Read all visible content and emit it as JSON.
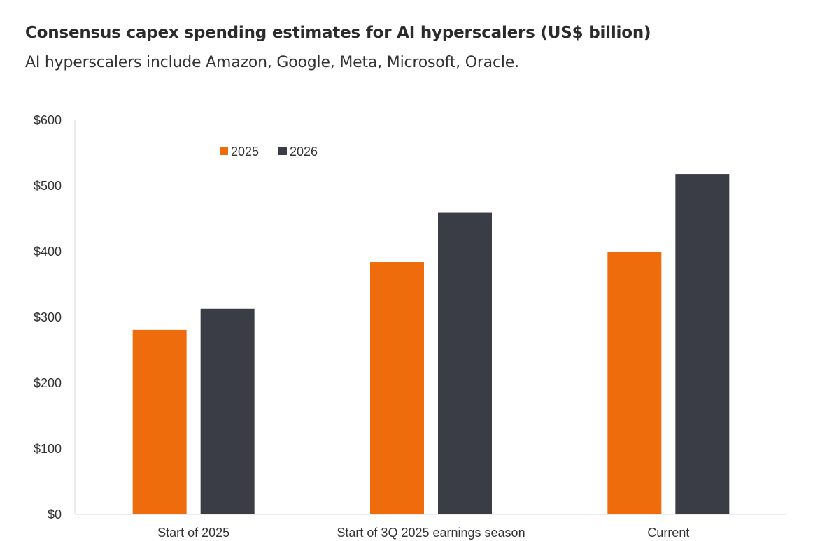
{
  "header": {
    "title": "Consensus capex spending estimates for AI hyperscalers (US$ billion)",
    "subtitle": "AI hyperscalers include Amazon, Google, Meta, Microsoft, Oracle."
  },
  "chart_data": {
    "type": "bar",
    "title": "Consensus capex spending estimates for AI hyperscalers (US$ billion)",
    "subtitle": "AI hyperscalers include Amazon, Google, Meta, Microsoft, Oracle.",
    "xlabel": "",
    "ylabel": "",
    "categories": [
      "Start of 2025",
      "Start of 3Q 2025 earnings season",
      "Current"
    ],
    "series": [
      {
        "name": "2025",
        "color": "#ee6c0b",
        "values": [
          281,
          384,
          400
        ]
      },
      {
        "name": "2026",
        "color": "#3a3d46",
        "values": [
          313,
          459,
          518
        ]
      }
    ],
    "ylim": [
      0,
      600
    ],
    "yticks": [
      0,
      100,
      200,
      300,
      400,
      500,
      600
    ],
    "ytick_labels": [
      "$0",
      "$100",
      "$200",
      "$300",
      "$400",
      "$500",
      "$600"
    ],
    "grid": false,
    "legend_position": "top-left"
  }
}
